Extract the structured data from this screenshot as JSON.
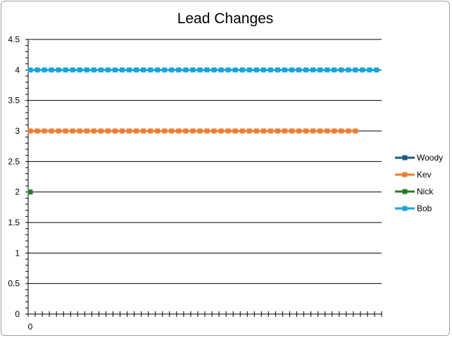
{
  "chart_data": {
    "type": "line",
    "title": "Lead Changes",
    "xlabel": "",
    "ylabel": "",
    "ylim": [
      0,
      4.5
    ],
    "y_ticks": [
      "0",
      "0.5",
      "1",
      "1.5",
      "2",
      "2.5",
      "3",
      "3.5",
      "4",
      "4.5"
    ],
    "x_tick_labels": [
      "0"
    ],
    "x_range": [
      0,
      49
    ],
    "grid": true,
    "legend_position": "right",
    "series": [
      {
        "name": "Woody",
        "color": "#1f5a7a",
        "x": [],
        "values": []
      },
      {
        "name": "Kev",
        "color": "#ed7d31",
        "x": [
          0,
          1,
          2,
          3,
          4,
          5,
          6,
          7,
          8,
          9,
          10,
          11,
          12,
          13,
          14,
          15,
          16,
          17,
          18,
          19,
          20,
          21,
          22,
          23,
          24,
          25,
          26,
          27,
          28,
          29,
          30,
          31,
          32,
          33,
          34,
          35,
          36,
          37,
          38,
          39,
          40,
          41,
          42,
          43,
          44,
          45,
          46
        ],
        "values": [
          3,
          3,
          3,
          3,
          3,
          3,
          3,
          3,
          3,
          3,
          3,
          3,
          3,
          3,
          3,
          3,
          3,
          3,
          3,
          3,
          3,
          3,
          3,
          3,
          3,
          3,
          3,
          3,
          3,
          3,
          3,
          3,
          3,
          3,
          3,
          3,
          3,
          3,
          3,
          3,
          3,
          3,
          3,
          3,
          3,
          3,
          3
        ]
      },
      {
        "name": "Nick",
        "color": "#2a7a2a",
        "x": [
          0
        ],
        "values": [
          2
        ]
      },
      {
        "name": "Bob",
        "color": "#1aa3d9",
        "x": [
          0,
          1,
          2,
          3,
          4,
          5,
          6,
          7,
          8,
          9,
          10,
          11,
          12,
          13,
          14,
          15,
          16,
          17,
          18,
          19,
          20,
          21,
          22,
          23,
          24,
          25,
          26,
          27,
          28,
          29,
          30,
          31,
          32,
          33,
          34,
          35,
          36,
          37,
          38,
          39,
          40,
          41,
          42,
          43,
          44,
          45,
          46,
          47,
          48,
          49
        ],
        "values": [
          4,
          4,
          4,
          4,
          4,
          4,
          4,
          4,
          4,
          4,
          4,
          4,
          4,
          4,
          4,
          4,
          4,
          4,
          4,
          4,
          4,
          4,
          4,
          4,
          4,
          4,
          4,
          4,
          4,
          4,
          4,
          4,
          4,
          4,
          4,
          4,
          4,
          4,
          4,
          4,
          4,
          4,
          4,
          4,
          4,
          4,
          4,
          4,
          4,
          4
        ]
      }
    ]
  }
}
